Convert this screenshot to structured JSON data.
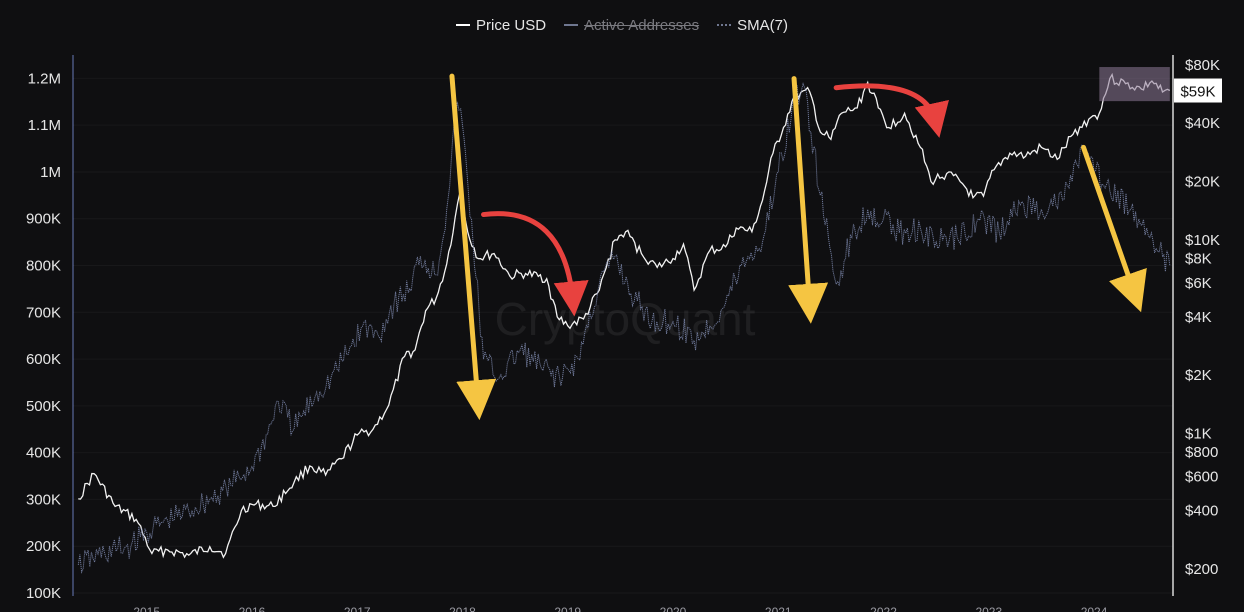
{
  "chart_data": {
    "type": "line",
    "watermark": "CryptoQuant",
    "legend": [
      {
        "name": "Price USD",
        "style": "solid",
        "color": "#ffffff",
        "hidden": false
      },
      {
        "name": "Active Addresses",
        "style": "solid",
        "color": "#6f7790",
        "hidden": true
      },
      {
        "name": "SMA(7)",
        "style": "dotted",
        "color": "#6f7790",
        "hidden": false
      }
    ],
    "y_left": {
      "scale": "linear",
      "range": [
        100000,
        1250000
      ],
      "ticks": [
        100000,
        200000,
        300000,
        400000,
        500000,
        600000,
        700000,
        800000,
        900000,
        1000000,
        1100000,
        1200000
      ],
      "tick_labels": [
        "100K",
        "200K",
        "300K",
        "400K",
        "500K",
        "600K",
        "700K",
        "800K",
        "900K",
        "1M",
        "1.1M",
        "1.2M"
      ]
    },
    "y_right": {
      "scale": "log",
      "range": [
        150,
        90000
      ],
      "ticks": [
        200,
        400,
        600,
        800,
        1000,
        2000,
        4000,
        6000,
        8000,
        10000,
        20000,
        40000,
        80000
      ],
      "tick_labels": [
        "$200",
        "$400",
        "$600",
        "$800",
        "$1K",
        "$2K",
        "$4K",
        "$6K",
        "$8K",
        "$10K",
        "$20K",
        "$40K",
        "$80K"
      ],
      "current_label": "$59K",
      "current_value": 59000
    },
    "x": {
      "range": [
        2014.3,
        2024.75
      ],
      "ticks": [
        2015,
        2016,
        2017,
        2018,
        2019,
        2020,
        2021,
        2022,
        2023,
        2024
      ],
      "tick_labels": [
        "2015",
        "2016",
        "2017",
        "2018",
        "2019",
        "2020",
        "2021",
        "2022",
        "2023",
        "2024"
      ]
    },
    "series": [
      {
        "name": "Price USD",
        "axis": "right",
        "points": [
          [
            2014.35,
            460
          ],
          [
            2014.5,
            620
          ],
          [
            2014.7,
            420
          ],
          [
            2014.9,
            360
          ],
          [
            2015.05,
            240
          ],
          [
            2015.2,
            250
          ],
          [
            2015.4,
            235
          ],
          [
            2015.6,
            260
          ],
          [
            2015.75,
            240
          ],
          [
            2015.9,
            400
          ],
          [
            2016.0,
            430
          ],
          [
            2016.2,
            420
          ],
          [
            2016.4,
            560
          ],
          [
            2016.55,
            680
          ],
          [
            2016.7,
            610
          ],
          [
            2016.85,
            740
          ],
          [
            2017.0,
            980
          ],
          [
            2017.15,
            1050
          ],
          [
            2017.3,
            1400
          ],
          [
            2017.45,
            2500
          ],
          [
            2017.55,
            2700
          ],
          [
            2017.65,
            4300
          ],
          [
            2017.75,
            5000
          ],
          [
            2017.85,
            7500
          ],
          [
            2017.93,
            13000
          ],
          [
            2017.98,
            18000
          ],
          [
            2018.05,
            11000
          ],
          [
            2018.15,
            8000
          ],
          [
            2018.3,
            8500
          ],
          [
            2018.45,
            6500
          ],
          [
            2018.6,
            6700
          ],
          [
            2018.8,
            6300
          ],
          [
            2018.9,
            4000
          ],
          [
            2019.0,
            3600
          ],
          [
            2019.15,
            3900
          ],
          [
            2019.3,
            5500
          ],
          [
            2019.45,
            10000
          ],
          [
            2019.55,
            11000
          ],
          [
            2019.7,
            8500
          ],
          [
            2019.85,
            7200
          ],
          [
            2020.0,
            8000
          ],
          [
            2020.1,
            9500
          ],
          [
            2020.2,
            5500
          ],
          [
            2020.35,
            8800
          ],
          [
            2020.5,
            9200
          ],
          [
            2020.6,
            11500
          ],
          [
            2020.75,
            11000
          ],
          [
            2020.85,
            16000
          ],
          [
            2020.95,
            28000
          ],
          [
            2021.05,
            38000
          ],
          [
            2021.15,
            55000
          ],
          [
            2021.3,
            58000
          ],
          [
            2021.4,
            36000
          ],
          [
            2021.5,
            33000
          ],
          [
            2021.6,
            45000
          ],
          [
            2021.75,
            48000
          ],
          [
            2021.85,
            65000
          ],
          [
            2021.95,
            48000
          ],
          [
            2022.05,
            38000
          ],
          [
            2022.2,
            45000
          ],
          [
            2022.35,
            30000
          ],
          [
            2022.45,
            20000
          ],
          [
            2022.6,
            22000
          ],
          [
            2022.75,
            19500
          ],
          [
            2022.85,
            16500
          ],
          [
            2022.95,
            16800
          ],
          [
            2023.05,
            23000
          ],
          [
            2023.2,
            28000
          ],
          [
            2023.35,
            27000
          ],
          [
            2023.5,
            30000
          ],
          [
            2023.65,
            26000
          ],
          [
            2023.8,
            35000
          ],
          [
            2023.95,
            42000
          ],
          [
            2024.05,
            45000
          ],
          [
            2024.15,
            68000
          ],
          [
            2024.3,
            64000
          ],
          [
            2024.45,
            60000
          ],
          [
            2024.55,
            66000
          ],
          [
            2024.65,
            58000
          ],
          [
            2024.72,
            59000
          ]
        ]
      },
      {
        "name": "SMA(7)",
        "axis": "left",
        "points": [
          [
            2014.35,
            160000
          ],
          [
            2014.6,
            185000
          ],
          [
            2014.85,
            200000
          ],
          [
            2015.0,
            230000
          ],
          [
            2015.2,
            255000
          ],
          [
            2015.4,
            275000
          ],
          [
            2015.6,
            300000
          ],
          [
            2015.8,
            330000
          ],
          [
            2016.0,
            370000
          ],
          [
            2016.15,
            440000
          ],
          [
            2016.25,
            510000
          ],
          [
            2016.4,
            450000
          ],
          [
            2016.6,
            520000
          ],
          [
            2016.75,
            560000
          ],
          [
            2016.9,
            610000
          ],
          [
            2017.05,
            670000
          ],
          [
            2017.2,
            650000
          ],
          [
            2017.35,
            720000
          ],
          [
            2017.5,
            750000
          ],
          [
            2017.6,
            820000
          ],
          [
            2017.75,
            780000
          ],
          [
            2017.85,
            920000
          ],
          [
            2017.95,
            1150000
          ],
          [
            2018.0,
            1100000
          ],
          [
            2018.1,
            850000
          ],
          [
            2018.2,
            600000
          ],
          [
            2018.35,
            560000
          ],
          [
            2018.55,
            620000
          ],
          [
            2018.75,
            580000
          ],
          [
            2018.95,
            560000
          ],
          [
            2019.1,
            600000
          ],
          [
            2019.3,
            760000
          ],
          [
            2019.45,
            820000
          ],
          [
            2019.6,
            740000
          ],
          [
            2019.8,
            680000
          ],
          [
            2020.0,
            680000
          ],
          [
            2020.2,
            640000
          ],
          [
            2020.35,
            670000
          ],
          [
            2020.5,
            720000
          ],
          [
            2020.65,
            800000
          ],
          [
            2020.85,
            850000
          ],
          [
            2021.0,
            1000000
          ],
          [
            2021.15,
            1150000
          ],
          [
            2021.25,
            1180000
          ],
          [
            2021.4,
            950000
          ],
          [
            2021.55,
            760000
          ],
          [
            2021.7,
            860000
          ],
          [
            2021.85,
            920000
          ],
          [
            2022.0,
            900000
          ],
          [
            2022.15,
            870000
          ],
          [
            2022.35,
            880000
          ],
          [
            2022.5,
            850000
          ],
          [
            2022.7,
            860000
          ],
          [
            2022.9,
            900000
          ],
          [
            2023.1,
            870000
          ],
          [
            2023.3,
            930000
          ],
          [
            2023.5,
            920000
          ],
          [
            2023.7,
            940000
          ],
          [
            2023.9,
            1050000
          ],
          [
            2024.0,
            1000000
          ],
          [
            2024.15,
            960000
          ],
          [
            2024.35,
            920000
          ],
          [
            2024.5,
            880000
          ],
          [
            2024.65,
            820000
          ],
          [
            2024.72,
            800000
          ]
        ]
      }
    ],
    "annotations": [
      {
        "type": "arrow",
        "color": "#f5c542",
        "from": [
          2017.9,
          70000
        ],
        "to": [
          2018.15,
          1400
        ],
        "axis": "right"
      },
      {
        "type": "arrow",
        "color": "#f5c542",
        "from": [
          2021.15,
          68000
        ],
        "to": [
          2021.3,
          4400
        ],
        "axis": "right"
      },
      {
        "type": "arrow",
        "color": "#f5c542",
        "from": [
          2023.9,
          30000
        ],
        "to": [
          2024.4,
          5000
        ],
        "axis": "right"
      },
      {
        "type": "curved-arrow",
        "color": "#e8423f",
        "from": [
          2018.2,
          13500
        ],
        "to": [
          2019.05,
          4800
        ],
        "axis": "right"
      },
      {
        "type": "curved-arrow",
        "color": "#e8423f",
        "from": [
          2021.55,
          61000
        ],
        "to": [
          2022.5,
          40000
        ],
        "axis": "right"
      },
      {
        "type": "highlight-box",
        "color": "#8e7a98",
        "x_range": [
          2024.05,
          2024.72
        ],
        "y_range": [
          52000,
          78000
        ],
        "axis": "right"
      }
    ]
  }
}
